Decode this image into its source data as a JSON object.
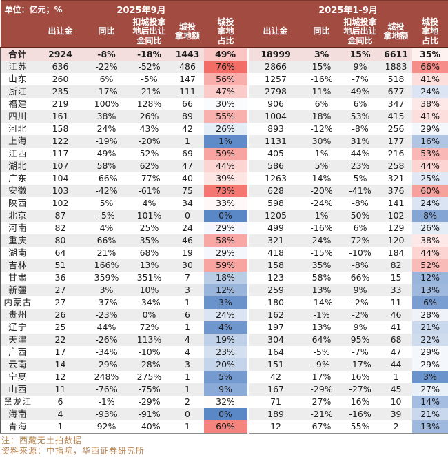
{
  "title_bar": {
    "unit_label": "单位：亿元；%",
    "period_sep": "2025年9月",
    "period_ytd": "2025年1-9月"
  },
  "footer": {
    "note": "注：西藏无土拍数据",
    "source": "资料来源：中指院，华西证券研究所"
  },
  "colors": {
    "header_bg": "#a24b40",
    "header_top_line": "#7d342b",
    "header_bottom_line": "#5f231b",
    "total_row_bg": "#f3dedd",
    "stripe_bg": "#ededed",
    "heat_high": "#f36d67",
    "heat_low": "#5a87c6",
    "heat_mid": "#ffffff",
    "footer_text": "#b5824e"
  },
  "chart_data": {
    "type": "table",
    "column_groups": [
      "2025年9月",
      "2025年1-9月"
    ],
    "columns": [
      "出让金",
      "同比",
      "扣城投拿\n地后出让\n金同比",
      "城投\n拿地额",
      "城投\n拿地\n占比"
    ],
    "heat_scale": {
      "applies_to": "城投拿地占比",
      "min": 0,
      "mid": 31,
      "max": 76,
      "low_color": "#5a87c6",
      "mid_color": "#ffffff",
      "high_color": "#f36d67"
    },
    "rows": [
      {
        "name": "合计",
        "total": true,
        "sep": [
          "2924",
          "-8%",
          "-18%",
          "1443",
          "49%"
        ],
        "ytd": [
          "18999",
          "3%",
          "15%",
          "6611",
          "35%"
        ]
      },
      {
        "name": "江苏",
        "sep": [
          "636",
          "-22%",
          "-52%",
          "486",
          "76%"
        ],
        "ytd": [
          "2866",
          "15%",
          "9%",
          "1883",
          "66%"
        ]
      },
      {
        "name": "山东",
        "sep": [
          "260",
          "6%",
          "-5%",
          "147",
          "56%"
        ],
        "ytd": [
          "1257",
          "-16%",
          "-7%",
          "518",
          "41%"
        ]
      },
      {
        "name": "浙江",
        "sep": [
          "235",
          "-17%",
          "-21%",
          "111",
          "47%"
        ],
        "ytd": [
          "2798",
          "11%",
          "49%",
          "677",
          "24%"
        ]
      },
      {
        "name": "福建",
        "sep": [
          "219",
          "100%",
          "128%",
          "66",
          "30%"
        ],
        "ytd": [
          "906",
          "6%",
          "6%",
          "347",
          "38%"
        ]
      },
      {
        "name": "四川",
        "sep": [
          "161",
          "38%",
          "26%",
          "89",
          "55%"
        ],
        "ytd": [
          "1004",
          "18%",
          "53%",
          "415",
          "41%"
        ]
      },
      {
        "name": "河北",
        "sep": [
          "158",
          "24%",
          "43%",
          "42",
          "26%"
        ],
        "ytd": [
          "893",
          "-12%",
          "-8%",
          "256",
          "29%"
        ]
      },
      {
        "name": "上海",
        "sep": [
          "122",
          "-19%",
          "-20%",
          "1",
          "1%"
        ],
        "ytd": [
          "1131",
          "30%",
          "31%",
          "177",
          "16%"
        ]
      },
      {
        "name": "江西",
        "sep": [
          "117",
          "49%",
          "52%",
          "69",
          "59%"
        ],
        "ytd": [
          "405",
          "1%",
          "44%",
          "216",
          "53%"
        ]
      },
      {
        "name": "湖北",
        "sep": [
          "107",
          "58%",
          "62%",
          "47",
          "44%"
        ],
        "ytd": [
          "586",
          "5%",
          "23%",
          "258",
          "44%"
        ]
      },
      {
        "name": "广东",
        "sep": [
          "104",
          "-66%",
          "-77%",
          "40",
          "39%"
        ],
        "ytd": [
          "1263",
          "14%",
          "5%",
          "321",
          "25%"
        ]
      },
      {
        "name": "安徽",
        "sep": [
          "103",
          "-42%",
          "-61%",
          "75",
          "73%"
        ],
        "ytd": [
          "628",
          "-20%",
          "-41%",
          "376",
          "60%"
        ]
      },
      {
        "name": "陕西",
        "sep": [
          "102",
          "5%",
          "4%",
          "34",
          "33%"
        ],
        "ytd": [
          "598",
          "-24%",
          "-8%",
          "141",
          "24%"
        ]
      },
      {
        "name": "北京",
        "sep": [
          "87",
          "-5%",
          "101%",
          "0",
          "0%"
        ],
        "ytd": [
          "1205",
          "1%",
          "50%",
          "102",
          "8%"
        ]
      },
      {
        "name": "河南",
        "sep": [
          "82",
          "4%",
          "25%",
          "24",
          "29%"
        ],
        "ytd": [
          "499",
          "-16%",
          "6%",
          "129",
          "26%"
        ]
      },
      {
        "name": "重庆",
        "sep": [
          "80",
          "66%",
          "35%",
          "46",
          "58%"
        ],
        "ytd": [
          "321",
          "24%",
          "72%",
          "120",
          "38%"
        ]
      },
      {
        "name": "湖南",
        "sep": [
          "64",
          "21%",
          "68%",
          "19",
          "29%"
        ],
        "ytd": [
          "418",
          "-15%",
          "-10%",
          "184",
          "44%"
        ]
      },
      {
        "name": "吉林",
        "sep": [
          "51",
          "166%",
          "13%",
          "30",
          "59%"
        ],
        "ytd": [
          "158",
          "35%",
          "-8%",
          "82",
          "52%"
        ]
      },
      {
        "name": "甘肃",
        "sep": [
          "36",
          "359%",
          "351%",
          "7",
          "18%"
        ],
        "ytd": [
          "123",
          "58%",
          "66%",
          "15",
          "12%"
        ]
      },
      {
        "name": "新疆",
        "sep": [
          "27",
          "3%",
          "10%",
          "3",
          "12%"
        ],
        "ytd": [
          "259",
          "13%",
          "9%",
          "33",
          "13%"
        ]
      },
      {
        "name": "内蒙古",
        "sep": [
          "27",
          "-37%",
          "-34%",
          "1",
          "3%"
        ],
        "ytd": [
          "180",
          "-14%",
          "-2%",
          "11",
          "6%"
        ]
      },
      {
        "name": "贵州",
        "sep": [
          "26",
          "-23%",
          "0%",
          "6",
          "24%"
        ],
        "ytd": [
          "162",
          "-1%",
          "-2%",
          "46",
          "28%"
        ]
      },
      {
        "name": "辽宁",
        "sep": [
          "25",
          "44%",
          "72%",
          "1",
          "4%"
        ],
        "ytd": [
          "197",
          "13%",
          "9%",
          "41",
          "21%"
        ]
      },
      {
        "name": "天津",
        "sep": [
          "22",
          "-26%",
          "113%",
          "4",
          "19%"
        ],
        "ytd": [
          "304",
          "64%",
          "95%",
          "68",
          "22%"
        ]
      },
      {
        "name": "广西",
        "sep": [
          "17",
          "-34%",
          "-10%",
          "4",
          "23%"
        ],
        "ytd": [
          "164",
          "-5%",
          "-7%",
          "47",
          "29%"
        ]
      },
      {
        "name": "云南",
        "sep": [
          "14",
          "-29%",
          "-28%",
          "3",
          "20%"
        ],
        "ytd": [
          "151",
          "-9%",
          "-17%",
          "44",
          "29%"
        ]
      },
      {
        "name": "宁夏",
        "sep": [
          "12",
          "248%",
          "275%",
          "1",
          "5%"
        ],
        "ytd": [
          "42",
          "17%",
          "16%",
          "1",
          "3%"
        ]
      },
      {
        "name": "山西",
        "sep": [
          "11",
          "-76%",
          "-75%",
          "1",
          "9%"
        ],
        "ytd": [
          "167",
          "-29%",
          "-27%",
          "45",
          "27%"
        ]
      },
      {
        "name": "黑龙江",
        "sep": [
          "6",
          "-1%",
          "-29%",
          "2",
          "32%"
        ],
        "ytd": [
          "71",
          "27%",
          "16%",
          "10",
          "14%"
        ]
      },
      {
        "name": "海南",
        "sep": [
          "4",
          "-93%",
          "-91%",
          "0",
          "0%"
        ],
        "ytd": [
          "189",
          "-21%",
          "-16%",
          "39",
          "21%"
        ]
      },
      {
        "name": "青海",
        "sep": [
          "1",
          "92%",
          "-40%",
          "1",
          "69%"
        ],
        "ytd": [
          "12",
          "67%",
          "55%",
          "2",
          "13%"
        ]
      }
    ]
  }
}
